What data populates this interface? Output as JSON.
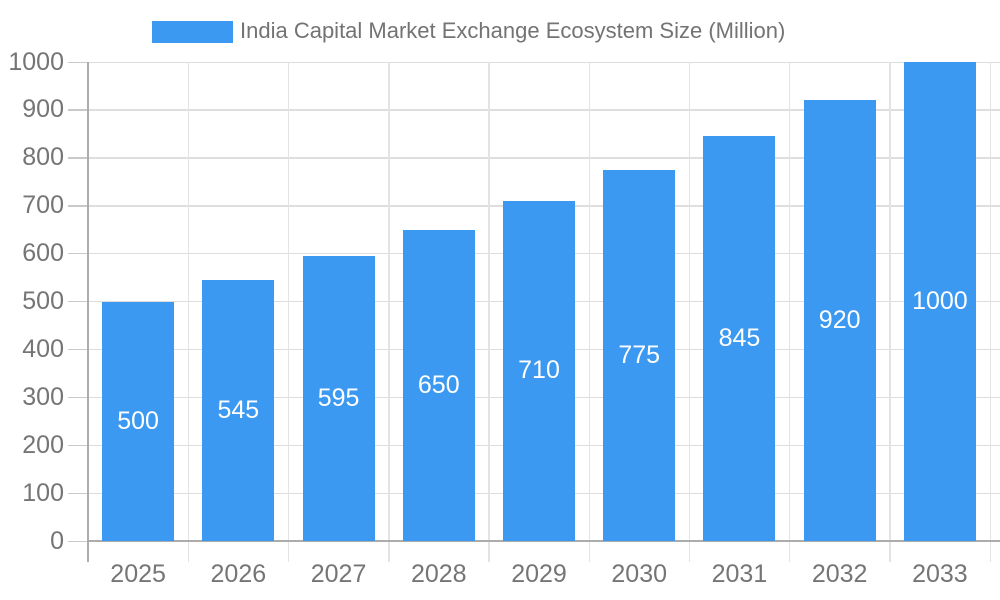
{
  "chart_data": {
    "type": "bar",
    "title": "India Capital Market Exchange Ecosystem Size (Million)",
    "categories": [
      "2025",
      "2026",
      "2027",
      "2028",
      "2029",
      "2030",
      "2031",
      "2032",
      "2033"
    ],
    "values": [
      500,
      545,
      595,
      650,
      710,
      775,
      845,
      920,
      1000
    ],
    "xlabel": "",
    "ylabel": "",
    "ylim": [
      0,
      1000
    ],
    "ytick_step": 100,
    "ytick_labels": [
      "0",
      "100",
      "200",
      "300",
      "400",
      "500",
      "600",
      "700",
      "800",
      "900",
      "1000"
    ],
    "grid": true,
    "legend_position": "top",
    "value_label_position": "inside-center"
  },
  "colors": {
    "bar": "#3B99F2",
    "value_label": "#FFFFFF",
    "axis_text": "#757575",
    "legend_text": "#737373",
    "grid_line": "#DEDEDE",
    "vgrid_line": "#E3E3E3",
    "tick_line": "#C9C9C9",
    "axis_line": "#ACACAC",
    "background": "#FFFFFF"
  }
}
